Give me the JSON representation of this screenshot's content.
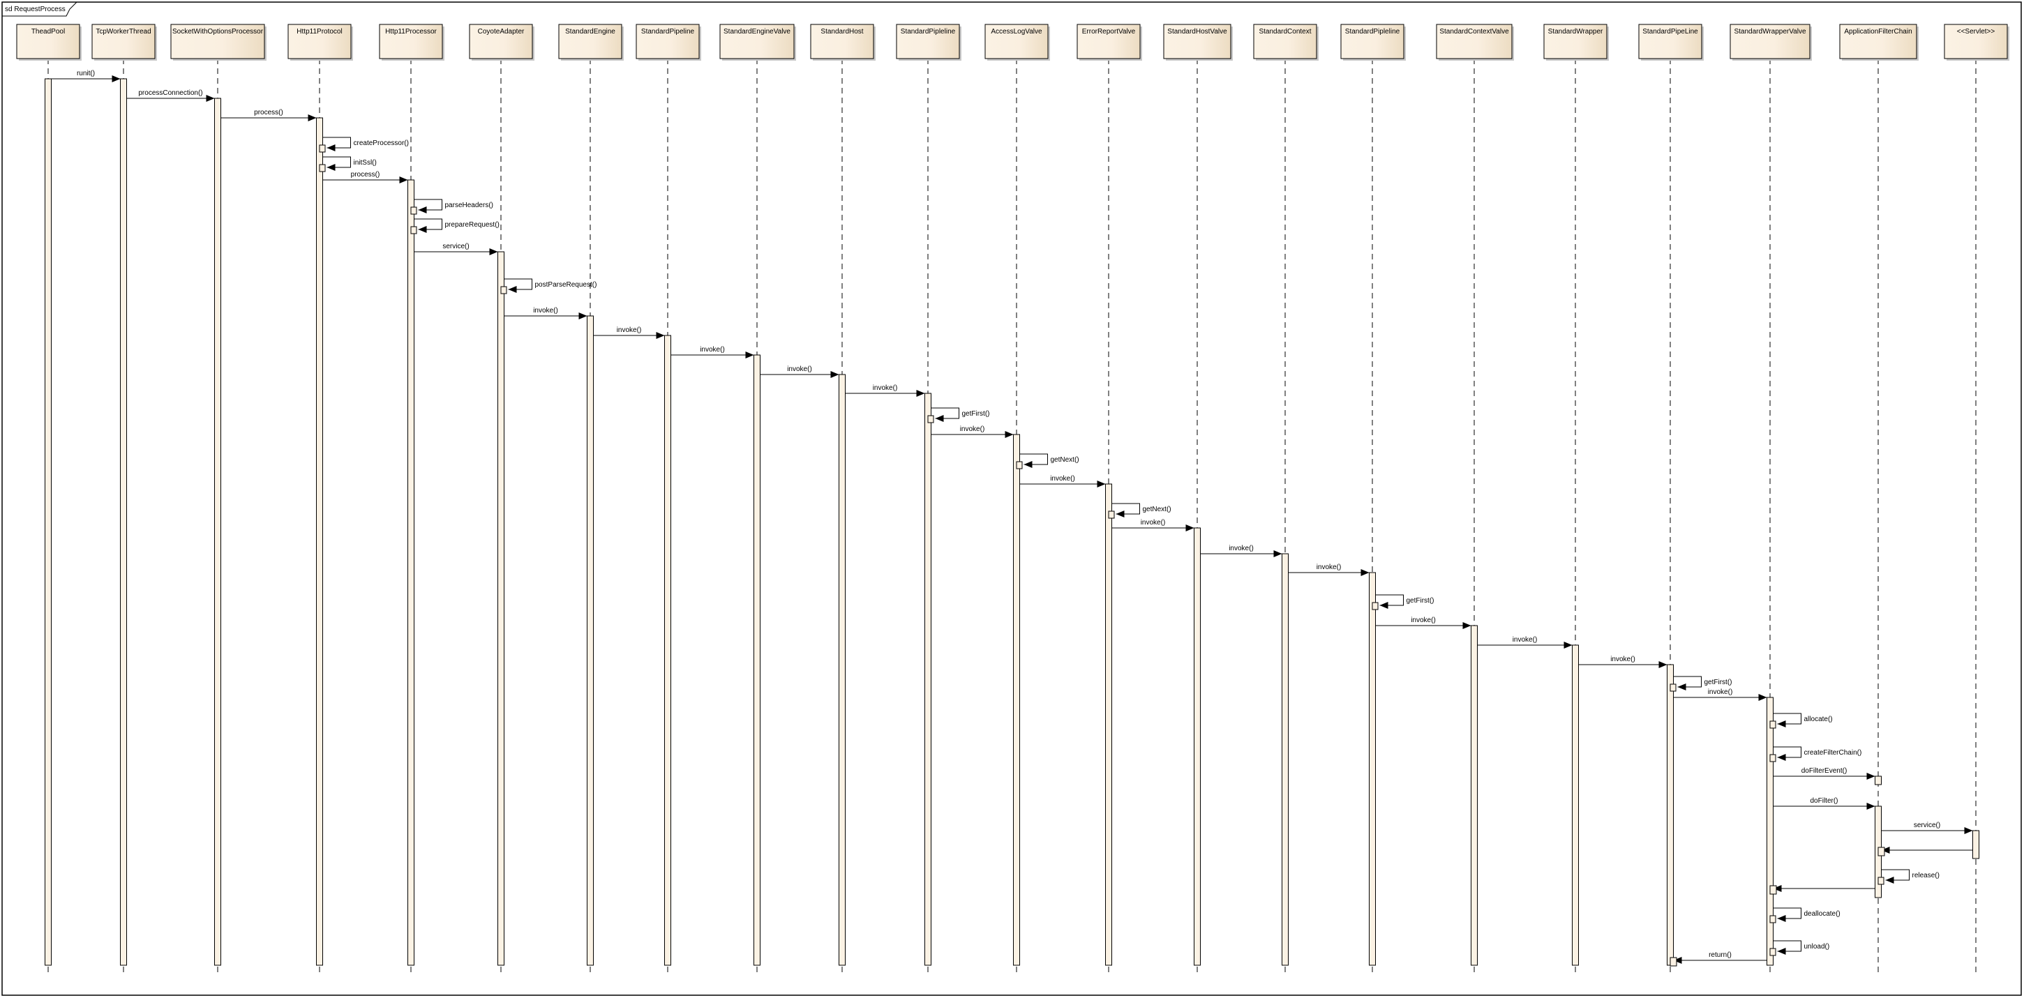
{
  "frame": {
    "title": "sd RequestProcess"
  },
  "colors": {
    "box_fill_light": "#fbf2e4",
    "box_fill_dark": "#ecdcc2",
    "activation_fill": "#fbf2e4",
    "line": "#000000"
  },
  "participants": [
    "TheadPool",
    "TcpWorkerThread",
    "SocketWithOptionsProcessor",
    "Http11Protocol",
    "Http11Processor",
    "CoyoteAdapter",
    "StandardEngine",
    "StandardPipeline",
    "StandardEngineValve",
    "StandardHost",
    "StandardPipleline",
    "AccessLogValve",
    "ErrorReportValve",
    "StandardHostValve",
    "StandardContext",
    "StandardPipleline",
    "StandardContextValve",
    "StandardWrapper",
    "StandardPipeLine",
    "StandardWrapperValve",
    "ApplicationFilterChain",
    "<<Servlet>>"
  ],
  "messages": [
    {
      "from": 0,
      "to": 1,
      "label": "runit()"
    },
    {
      "from": 1,
      "to": 2,
      "label": "processConnection()"
    },
    {
      "from": 2,
      "to": 3,
      "label": "process()"
    },
    {
      "from": 3,
      "to": 3,
      "label": "createProcessor()"
    },
    {
      "from": 3,
      "to": 3,
      "label": "initSsl()"
    },
    {
      "from": 3,
      "to": 4,
      "label": "process()"
    },
    {
      "from": 4,
      "to": 4,
      "label": "parseHeaders()"
    },
    {
      "from": 4,
      "to": 4,
      "label": "prepareRequest()"
    },
    {
      "from": 4,
      "to": 5,
      "label": "service()"
    },
    {
      "from": 5,
      "to": 5,
      "label": "postParseRequest()"
    },
    {
      "from": 5,
      "to": 6,
      "label": "invoke()"
    },
    {
      "from": 6,
      "to": 7,
      "label": "invoke()"
    },
    {
      "from": 7,
      "to": 8,
      "label": "invoke()"
    },
    {
      "from": 8,
      "to": 9,
      "label": "invoke()"
    },
    {
      "from": 9,
      "to": 10,
      "label": "invoke()"
    },
    {
      "from": 10,
      "to": 10,
      "label": "getFirst()"
    },
    {
      "from": 10,
      "to": 11,
      "label": "invoke()"
    },
    {
      "from": 11,
      "to": 11,
      "label": "getNext()"
    },
    {
      "from": 11,
      "to": 12,
      "label": "invoke()"
    },
    {
      "from": 12,
      "to": 12,
      "label": "getNext()"
    },
    {
      "from": 12,
      "to": 13,
      "label": "invoke()"
    },
    {
      "from": 13,
      "to": 14,
      "label": "invoke()"
    },
    {
      "from": 14,
      "to": 15,
      "label": "invoke()"
    },
    {
      "from": 15,
      "to": 15,
      "label": "getFirst()"
    },
    {
      "from": 15,
      "to": 16,
      "label": "invoke()"
    },
    {
      "from": 16,
      "to": 17,
      "label": "invoke()"
    },
    {
      "from": 17,
      "to": 18,
      "label": "invoke()"
    },
    {
      "from": 18,
      "to": 18,
      "label": "getFirst()"
    },
    {
      "from": 18,
      "to": 19,
      "label": "invoke()"
    },
    {
      "from": 19,
      "to": 19,
      "label": "allocate()"
    },
    {
      "from": 19,
      "to": 19,
      "label": "createFilterChain()"
    },
    {
      "from": 19,
      "to": 20,
      "label": "doFilterEvent()"
    },
    {
      "from": 19,
      "to": 20,
      "label": "doFilter()"
    },
    {
      "from": 20,
      "to": 21,
      "label": "service()"
    },
    {
      "from": 21,
      "to": 20,
      "label": ""
    },
    {
      "from": 20,
      "to": 20,
      "label": "release()"
    },
    {
      "from": 20,
      "to": 19,
      "label": ""
    },
    {
      "from": 19,
      "to": 19,
      "label": "deallocate()"
    },
    {
      "from": 19,
      "to": 19,
      "label": "unload()"
    },
    {
      "from": 19,
      "to": 18,
      "label": "return()"
    }
  ]
}
